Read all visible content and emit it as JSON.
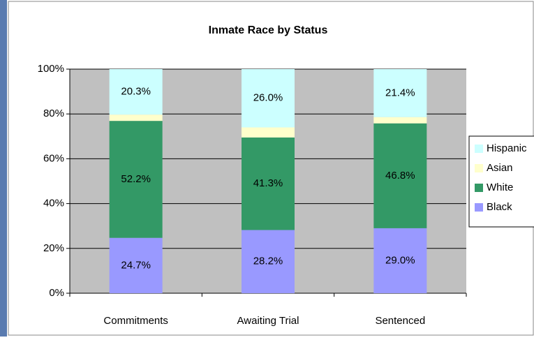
{
  "chart_data": {
    "type": "stacked_bar",
    "title": "Inmate Race by Status",
    "categories": [
      "Commitments",
      "Awaiting Trial",
      "Sentenced"
    ],
    "series": [
      {
        "name": "Black",
        "color": "#9999ff",
        "values": [
          24.7,
          28.2,
          29.0
        ],
        "value_labels": [
          "24.7%",
          "28.2%",
          "29.0%"
        ]
      },
      {
        "name": "White",
        "color": "#339966",
        "values": [
          52.2,
          41.3,
          46.8
        ],
        "value_labels": [
          "52.2%",
          "41.3%",
          "46.8%"
        ]
      },
      {
        "name": "Asian",
        "color": "#ffffcc",
        "values": [
          2.8,
          4.5,
          2.8
        ]
      },
      {
        "name": "Hispanic",
        "color": "#ccffff",
        "values": [
          20.3,
          26.0,
          21.4
        ],
        "value_labels": [
          "20.3%",
          "26.0%",
          "21.4%"
        ]
      }
    ],
    "ylim": [
      0,
      100
    ],
    "yticks": [
      {
        "value": 0,
        "label": "0%"
      },
      {
        "value": 20,
        "label": "20%"
      },
      {
        "value": 40,
        "label": "40%"
      },
      {
        "value": 60,
        "label": "60%"
      },
      {
        "value": 80,
        "label": "80%"
      },
      {
        "value": 100,
        "label": "100%"
      }
    ],
    "grid": true,
    "legend": "right"
  }
}
